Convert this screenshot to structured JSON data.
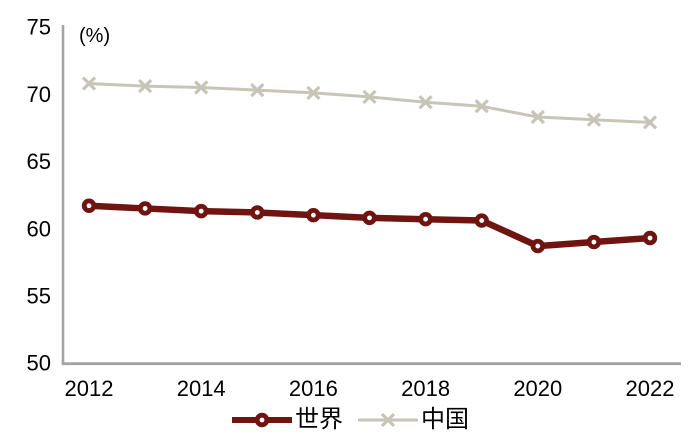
{
  "figure": {
    "unit_label": "(%)"
  },
  "chart_data": {
    "type": "line",
    "x": [
      2012,
      2013,
      2014,
      2015,
      2016,
      2017,
      2018,
      2019,
      2020,
      2021,
      2022
    ],
    "series": [
      {
        "name": "世界",
        "color": "#701411",
        "marker": "circle",
        "values": [
          61.7,
          61.5,
          61.3,
          61.2,
          61.0,
          60.8,
          60.7,
          60.6,
          58.7,
          59.0,
          59.3
        ]
      },
      {
        "name": "中国",
        "color": "#c6c5b7",
        "marker": "x",
        "values": [
          70.8,
          70.6,
          70.5,
          70.3,
          70.1,
          69.8,
          69.4,
          69.1,
          68.3,
          68.1,
          67.9
        ]
      }
    ],
    "ylim": [
      50,
      75
    ],
    "yticks": [
      50,
      55,
      60,
      65,
      70,
      75
    ],
    "xticks": [
      2012,
      2014,
      2016,
      2018,
      2020,
      2022
    ],
    "unit_label": "(%)",
    "axis_color": "#a3a3a3",
    "text_color": "#000000",
    "grid": false,
    "legend_position": "bottom"
  }
}
